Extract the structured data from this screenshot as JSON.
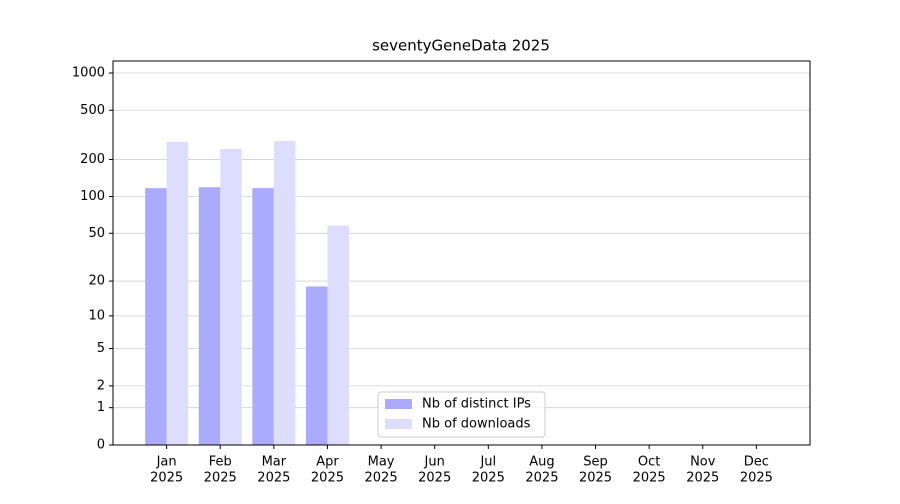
{
  "chart_data": {
    "type": "bar",
    "title": "seventyGeneData 2025",
    "categories": [
      [
        "Jan",
        "2025"
      ],
      [
        "Feb",
        "2025"
      ],
      [
        "Mar",
        "2025"
      ],
      [
        "Apr",
        "2025"
      ],
      [
        "May",
        "2025"
      ],
      [
        "Jun",
        "2025"
      ],
      [
        "Jul",
        "2025"
      ],
      [
        "Aug",
        "2025"
      ],
      [
        "Sep",
        "2025"
      ],
      [
        "Oct",
        "2025"
      ],
      [
        "Nov",
        "2025"
      ],
      [
        "Dec",
        "2025"
      ]
    ],
    "series": [
      {
        "name": "Nb of distinct IPs",
        "color": "#aaaaff",
        "values": [
          117,
          119,
          117,
          18,
          null,
          null,
          null,
          null,
          null,
          null,
          null,
          null
        ]
      },
      {
        "name": "Nb of downloads",
        "color": "#ddddff",
        "values": [
          277,
          243,
          282,
          58,
          null,
          null,
          null,
          null,
          null,
          null,
          null,
          null
        ]
      }
    ],
    "yscale": "log1p",
    "ylim": [
      0,
      1250
    ],
    "yticks": [
      0,
      1,
      2,
      5,
      10,
      20,
      50,
      100,
      200,
      500,
      1000
    ],
    "grid": true,
    "legend": "lower center"
  }
}
